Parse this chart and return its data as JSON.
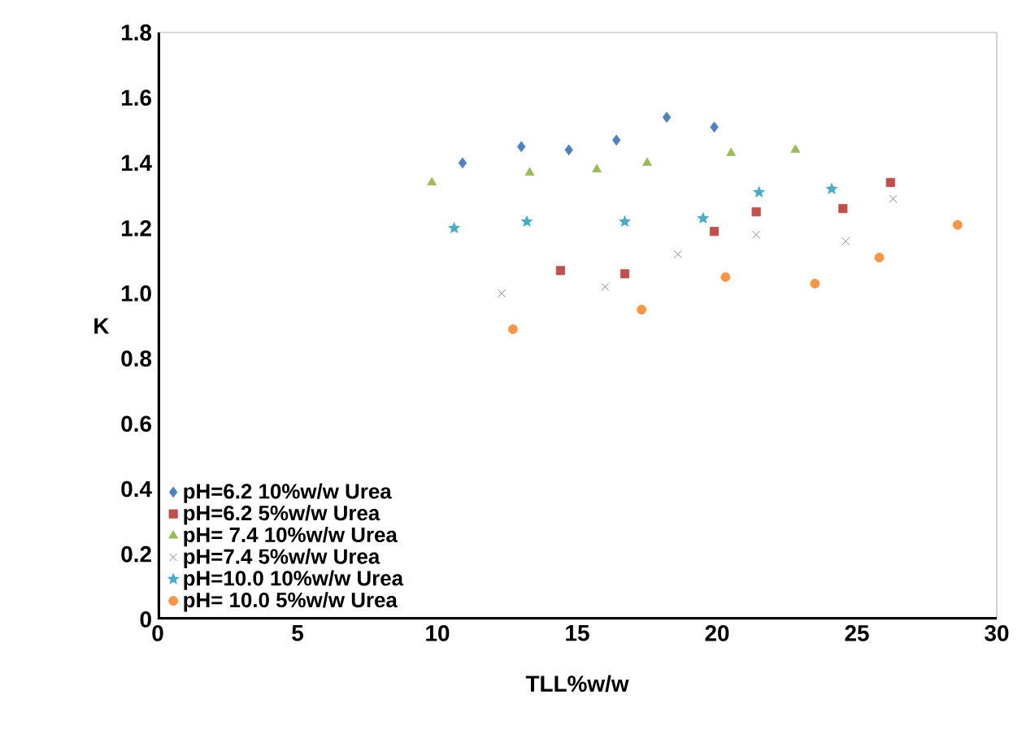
{
  "chart_data": {
    "type": "scatter",
    "xlabel": "TLL%w/w",
    "ylabel": "K",
    "xlim": [
      0,
      30
    ],
    "xticks": [
      0,
      5,
      10,
      15,
      20,
      25,
      30
    ],
    "ylim": [
      0,
      1.8
    ],
    "yticks": [
      0,
      0.2,
      0.4,
      0.6,
      0.8,
      {
        "value": 1.0,
        "label": "1.0"
      },
      1.2,
      1.4,
      1.6,
      1.8
    ],
    "legend": "bottom left",
    "grid": false,
    "series": [
      {
        "name": "pH=6.2 10%w/w Urea",
        "color": "#4f81bd",
        "marker": "diamond",
        "x": [
          10.9,
          13.0,
          14.7,
          16.4,
          18.2,
          19.9
        ],
        "values": [
          1.4,
          1.45,
          1.44,
          1.47,
          1.54,
          1.51
        ]
      },
      {
        "name": "pH=6.2 5%w/w Urea",
        "color": "#c0504d",
        "marker": "square",
        "x": [
          14.4,
          16.7,
          19.9,
          21.4,
          24.5,
          26.2
        ],
        "values": [
          1.07,
          1.06,
          1.19,
          1.25,
          1.26,
          1.34
        ]
      },
      {
        "name": "pH= 7.4 10%w/w Urea",
        "color": "#9bbb59",
        "marker": "triangle",
        "x": [
          9.8,
          13.3,
          15.7,
          17.5,
          20.5,
          22.8
        ],
        "values": [
          1.34,
          1.37,
          1.38,
          1.4,
          1.43,
          1.44
        ]
      },
      {
        "name": "pH=7.4 5%w/w Urea",
        "color": "#8064a2",
        "marker": "cross",
        "x": [
          12.3,
          16.0,
          18.6,
          21.4,
          24.6,
          26.3
        ],
        "values": [
          1.0,
          1.02,
          1.12,
          1.18,
          1.16,
          1.29
        ]
      },
      {
        "name": "pH=10.0 10%w/w Urea",
        "color": "#4bacc6",
        "marker": "star",
        "x": [
          10.6,
          13.2,
          16.7,
          19.5,
          21.5,
          24.1
        ],
        "values": [
          1.2,
          1.22,
          1.22,
          1.23,
          1.31,
          1.32
        ]
      },
      {
        "name": "pH= 10.0 5%w/w Urea",
        "color": "#f79646",
        "marker": "circle",
        "x": [
          12.7,
          17.3,
          20.3,
          23.5,
          25.8,
          28.6
        ],
        "values": [
          0.89,
          0.95,
          1.05,
          1.03,
          1.11,
          1.21
        ]
      }
    ]
  }
}
